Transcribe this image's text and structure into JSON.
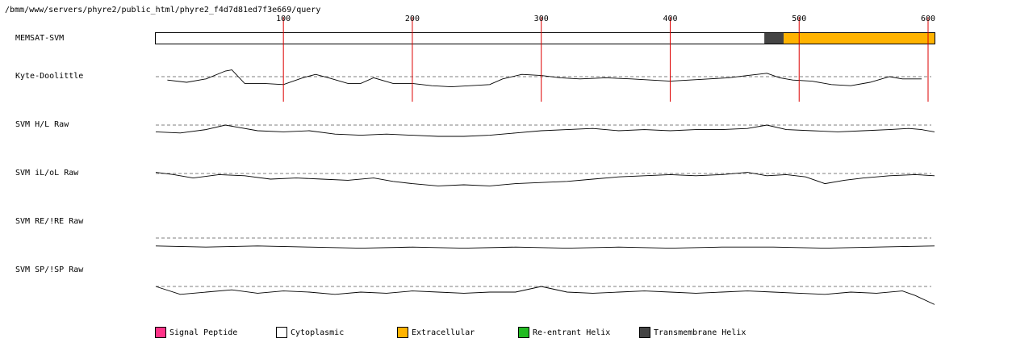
{
  "header": {
    "path": "/bmm/www/servers/phyre2/public_html/phyre2_f4d7d81ed7f3e669/query"
  },
  "chart_data": {
    "type": "line",
    "x_axis": {
      "min": 1,
      "max": 605,
      "ticks": [
        100,
        200,
        300,
        400,
        500,
        600
      ]
    },
    "tracks": [
      {
        "label": "MEMSAT-SVM",
        "kind": "topology",
        "segments": [
          {
            "start": 1,
            "end": 473,
            "class": "Cytoplasmic"
          },
          {
            "start": 473,
            "end": 488,
            "class": "Transmembrane Helix"
          },
          {
            "start": 488,
            "end": 605,
            "class": "Extracellular"
          }
        ]
      },
      {
        "label": "Kyte-Doolittle",
        "kind": "profile",
        "x_start": 10,
        "x_end": 595,
        "baseline": 0,
        "points": [
          [
            10,
            -0.3
          ],
          [
            25,
            -0.5
          ],
          [
            40,
            -0.2
          ],
          [
            55,
            0.5
          ],
          [
            60,
            0.6
          ],
          [
            70,
            -0.6
          ],
          [
            85,
            -0.6
          ],
          [
            100,
            -0.7
          ],
          [
            115,
            -0.1
          ],
          [
            125,
            0.2
          ],
          [
            135,
            -0.1
          ],
          [
            150,
            -0.6
          ],
          [
            160,
            -0.6
          ],
          [
            170,
            -0.1
          ],
          [
            185,
            -0.6
          ],
          [
            200,
            -0.6
          ],
          [
            215,
            -0.8
          ],
          [
            230,
            -0.9
          ],
          [
            245,
            -0.8
          ],
          [
            260,
            -0.7
          ],
          [
            270,
            -0.2
          ],
          [
            285,
            0.2
          ],
          [
            300,
            0.1
          ],
          [
            315,
            -0.1
          ],
          [
            330,
            -0.2
          ],
          [
            350,
            -0.1
          ],
          [
            370,
            -0.2
          ],
          [
            385,
            -0.3
          ],
          [
            400,
            -0.4
          ],
          [
            415,
            -0.3
          ],
          [
            430,
            -0.2
          ],
          [
            445,
            -0.1
          ],
          [
            460,
            0.1
          ],
          [
            475,
            0.3
          ],
          [
            485,
            -0.1
          ],
          [
            495,
            -0.3
          ],
          [
            510,
            -0.4
          ],
          [
            525,
            -0.7
          ],
          [
            540,
            -0.8
          ],
          [
            555,
            -0.5
          ],
          [
            570,
            0.0
          ],
          [
            580,
            -0.2
          ],
          [
            595,
            -0.2
          ]
        ]
      },
      {
        "label": "SVM H/L Raw",
        "kind": "profile",
        "x_start": 1,
        "x_end": 605,
        "baseline": 0,
        "points": [
          [
            1,
            -0.6
          ],
          [
            20,
            -0.7
          ],
          [
            40,
            -0.4
          ],
          [
            55,
            0.0
          ],
          [
            65,
            -0.2
          ],
          [
            80,
            -0.5
          ],
          [
            100,
            -0.6
          ],
          [
            120,
            -0.5
          ],
          [
            140,
            -0.8
          ],
          [
            160,
            -0.9
          ],
          [
            180,
            -0.8
          ],
          [
            200,
            -0.9
          ],
          [
            220,
            -1.0
          ],
          [
            240,
            -1.0
          ],
          [
            260,
            -0.9
          ],
          [
            280,
            -0.7
          ],
          [
            300,
            -0.5
          ],
          [
            320,
            -0.4
          ],
          [
            340,
            -0.3
          ],
          [
            360,
            -0.5
          ],
          [
            380,
            -0.4
          ],
          [
            400,
            -0.5
          ],
          [
            420,
            -0.4
          ],
          [
            440,
            -0.4
          ],
          [
            460,
            -0.3
          ],
          [
            475,
            0.0
          ],
          [
            490,
            -0.4
          ],
          [
            510,
            -0.5
          ],
          [
            530,
            -0.6
          ],
          [
            550,
            -0.5
          ],
          [
            570,
            -0.4
          ],
          [
            585,
            -0.3
          ],
          [
            595,
            -0.4
          ],
          [
            605,
            -0.6
          ]
        ]
      },
      {
        "label": "SVM iL/oL Raw",
        "kind": "profile",
        "x_start": 1,
        "x_end": 605,
        "baseline": 0,
        "points": [
          [
            1,
            0.1
          ],
          [
            15,
            -0.1
          ],
          [
            30,
            -0.4
          ],
          [
            50,
            -0.1
          ],
          [
            70,
            -0.2
          ],
          [
            90,
            -0.5
          ],
          [
            110,
            -0.4
          ],
          [
            130,
            -0.5
          ],
          [
            150,
            -0.6
          ],
          [
            170,
            -0.4
          ],
          [
            185,
            -0.7
          ],
          [
            200,
            -0.9
          ],
          [
            220,
            -1.1
          ],
          [
            240,
            -1.0
          ],
          [
            260,
            -1.1
          ],
          [
            280,
            -0.9
          ],
          [
            300,
            -0.8
          ],
          [
            320,
            -0.7
          ],
          [
            340,
            -0.5
          ],
          [
            360,
            -0.3
          ],
          [
            380,
            -0.2
          ],
          [
            400,
            -0.1
          ],
          [
            420,
            -0.2
          ],
          [
            440,
            -0.1
          ],
          [
            460,
            0.1
          ],
          [
            475,
            -0.2
          ],
          [
            490,
            -0.1
          ],
          [
            505,
            -0.3
          ],
          [
            520,
            -0.9
          ],
          [
            535,
            -0.6
          ],
          [
            550,
            -0.4
          ],
          [
            570,
            -0.2
          ],
          [
            590,
            -0.1
          ],
          [
            605,
            -0.2
          ]
        ]
      },
      {
        "label": "SVM RE/!RE Raw",
        "kind": "profile",
        "x_start": 1,
        "x_end": 605,
        "baseline": 0,
        "points": [
          [
            1,
            -0.7
          ],
          [
            40,
            -0.8
          ],
          [
            80,
            -0.7
          ],
          [
            120,
            -0.8
          ],
          [
            160,
            -0.9
          ],
          [
            200,
            -0.8
          ],
          [
            240,
            -0.9
          ],
          [
            280,
            -0.8
          ],
          [
            320,
            -0.9
          ],
          [
            360,
            -0.8
          ],
          [
            400,
            -0.9
          ],
          [
            440,
            -0.8
          ],
          [
            480,
            -0.8
          ],
          [
            520,
            -0.9
          ],
          [
            560,
            -0.8
          ],
          [
            605,
            -0.7
          ]
        ]
      },
      {
        "label": "SVM SP/!SP Raw",
        "kind": "profile",
        "x_start": 1,
        "x_end": 605,
        "baseline": 0,
        "points": [
          [
            1,
            0.0
          ],
          [
            20,
            -0.7
          ],
          [
            40,
            -0.5
          ],
          [
            60,
            -0.3
          ],
          [
            80,
            -0.6
          ],
          [
            100,
            -0.4
          ],
          [
            120,
            -0.5
          ],
          [
            140,
            -0.7
          ],
          [
            160,
            -0.5
          ],
          [
            180,
            -0.6
          ],
          [
            200,
            -0.4
          ],
          [
            220,
            -0.5
          ],
          [
            240,
            -0.6
          ],
          [
            260,
            -0.5
          ],
          [
            280,
            -0.5
          ],
          [
            300,
            0.0
          ],
          [
            320,
            -0.5
          ],
          [
            340,
            -0.6
          ],
          [
            360,
            -0.5
          ],
          [
            380,
            -0.4
          ],
          [
            400,
            -0.5
          ],
          [
            420,
            -0.6
          ],
          [
            440,
            -0.5
          ],
          [
            460,
            -0.4
          ],
          [
            480,
            -0.5
          ],
          [
            500,
            -0.6
          ],
          [
            520,
            -0.7
          ],
          [
            540,
            -0.5
          ],
          [
            560,
            -0.6
          ],
          [
            580,
            -0.4
          ],
          [
            590,
            -0.8
          ],
          [
            605,
            -1.6
          ]
        ]
      }
    ],
    "legend": [
      {
        "label": "Signal Peptide",
        "color": "#ff3388"
      },
      {
        "label": "Cytoplasmic",
        "color": "#ffffff"
      },
      {
        "label": "Extracellular",
        "color": "#ffb300"
      },
      {
        "label": "Re-entrant Helix",
        "color": "#22bb22"
      },
      {
        "label": "Transmembrane Helix",
        "color": "#444444"
      }
    ],
    "gridline_color": "#dd0000"
  }
}
